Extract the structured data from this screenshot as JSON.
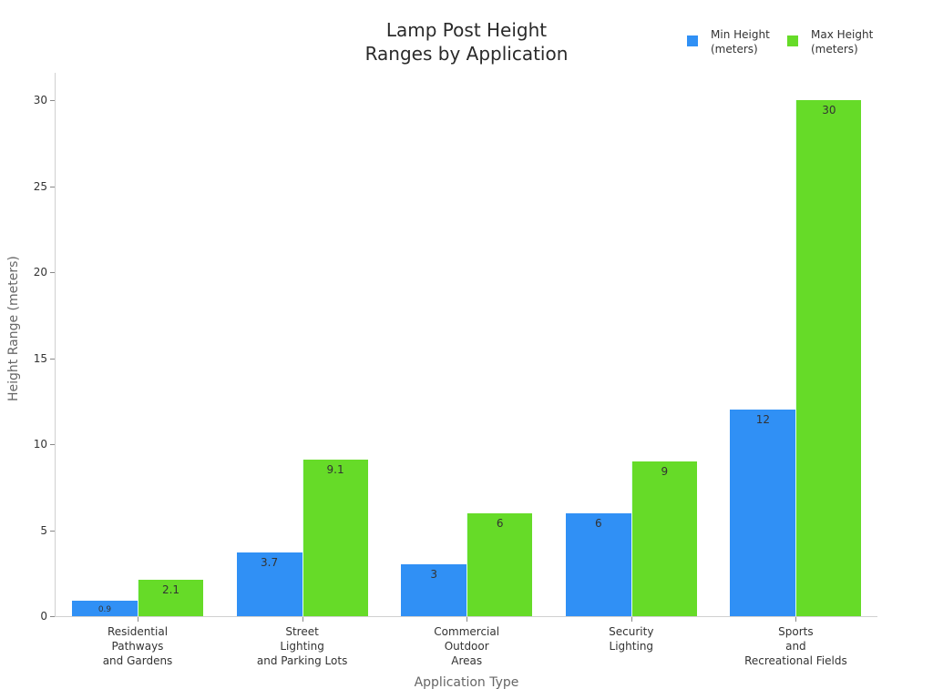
{
  "chart_data": {
    "type": "bar",
    "title": "Lamp Post Height\nRanges by Application",
    "title_lines": [
      "Lamp Post Height",
      "Ranges by Application"
    ],
    "xlabel": "Application Type",
    "ylabel": "Height Range (meters)",
    "ylim": [
      0,
      31.5
    ],
    "yticks": [
      0,
      5,
      10,
      15,
      20,
      25,
      30
    ],
    "grid": false,
    "legend_position": "top-right",
    "categories": [
      "Residential\nPathways\nand Gardens",
      "Street\nLighting\nand Parking Lots",
      "Commercial\nOutdoor\nAreas",
      "Security\nLighting",
      "Sports\nand\nRecreational Fields"
    ],
    "series": [
      {
        "name": "Min Height (meters)",
        "color": "#3090f5",
        "values": [
          0.9,
          3.7,
          3,
          6,
          12
        ]
      },
      {
        "name": "Max Height (meters)",
        "color": "#66db28",
        "values": [
          2.1,
          9.1,
          6,
          9,
          30
        ]
      }
    ]
  },
  "legend": {
    "items": [
      {
        "line1": "Min Height",
        "line2": "(meters)",
        "color": "#3090f5"
      },
      {
        "line1": "Max Height",
        "line2": "(meters)",
        "color": "#66db28"
      }
    ]
  }
}
